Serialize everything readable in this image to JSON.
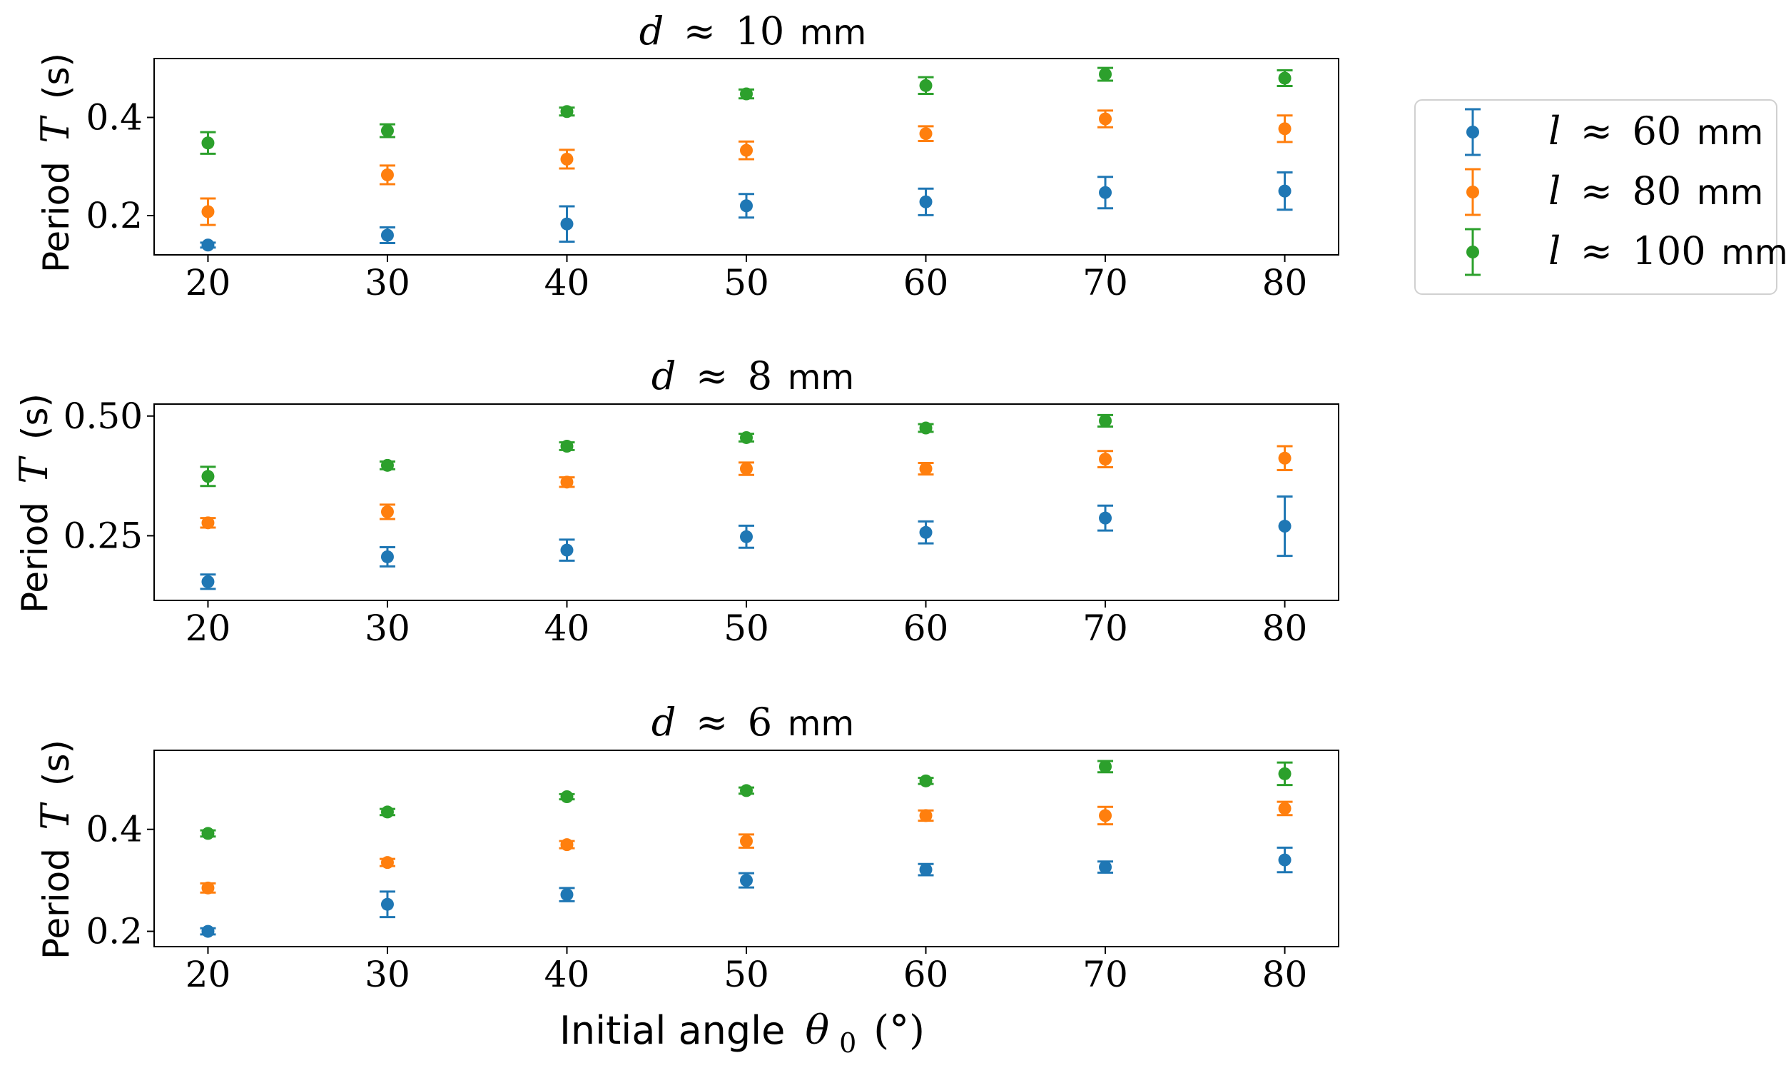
{
  "chart_data": [
    {
      "type": "scatter",
      "title": {
        "var": "d",
        "rel": "≈",
        "num": "10",
        "unit": "mm"
      },
      "ylabel": {
        "pre": "Period",
        "var": "T",
        "unit": "(s)"
      },
      "xlabel": "",
      "xlim": [
        17,
        83
      ],
      "ylim": [
        0.12,
        0.52
      ],
      "x_ticks": [
        20,
        30,
        40,
        50,
        60,
        70,
        80
      ],
      "y_ticks": [
        0.2,
        0.4
      ],
      "y_tick_labels": [
        "0.2",
        "0.4"
      ],
      "x": [
        20,
        30,
        40,
        50,
        60,
        70,
        80
      ],
      "series": [
        {
          "name": "l ≈ 60 mm",
          "color": "#1f77b4",
          "values": [
            0.14,
            0.16,
            0.183,
            0.22,
            0.228,
            0.247,
            0.25
          ],
          "errors": [
            0.005,
            0.016,
            0.036,
            0.024,
            0.027,
            0.032,
            0.038
          ]
        },
        {
          "name": "l ≈ 80 mm",
          "color": "#ff7f0e",
          "values": [
            0.208,
            0.283,
            0.315,
            0.333,
            0.367,
            0.397,
            0.377
          ],
          "errors": [
            0.027,
            0.019,
            0.019,
            0.018,
            0.015,
            0.017,
            0.027
          ]
        },
        {
          "name": "l ≈ 100 mm",
          "color": "#2ca02c",
          "values": [
            0.348,
            0.373,
            0.412,
            0.448,
            0.465,
            0.488,
            0.48
          ],
          "errors": [
            0.022,
            0.013,
            0.008,
            0.009,
            0.017,
            0.013,
            0.016
          ]
        }
      ]
    },
    {
      "type": "scatter",
      "title": {
        "var": "d",
        "rel": "≈",
        "num": "8",
        "unit": "mm"
      },
      "ylabel": {
        "pre": "Period",
        "var": "T",
        "unit": "(s)"
      },
      "xlabel": "",
      "xlim": [
        17,
        83
      ],
      "ylim": [
        0.115,
        0.525
      ],
      "x_ticks": [
        20,
        30,
        40,
        50,
        60,
        70,
        80
      ],
      "y_ticks": [
        0.25,
        0.5
      ],
      "y_tick_labels": [
        "0.25",
        "0.50"
      ],
      "x": [
        20,
        30,
        40,
        50,
        60,
        70,
        80
      ],
      "series": [
        {
          "name": "l ≈ 60 mm",
          "color": "#1f77b4",
          "values": [
            0.154,
            0.206,
            0.22,
            0.248,
            0.257,
            0.287,
            0.27
          ],
          "errors": [
            0.015,
            0.02,
            0.022,
            0.023,
            0.023,
            0.026,
            0.062
          ]
        },
        {
          "name": "l ≈ 80 mm",
          "color": "#ff7f0e",
          "values": [
            0.277,
            0.3,
            0.362,
            0.39,
            0.39,
            0.41,
            0.412
          ],
          "errors": [
            0.01,
            0.015,
            0.01,
            0.013,
            0.012,
            0.017,
            0.025
          ]
        },
        {
          "name": "l ≈ 100 mm",
          "color": "#2ca02c",
          "values": [
            0.374,
            0.397,
            0.437,
            0.455,
            0.475,
            0.49,
            null
          ],
          "errors": [
            0.02,
            0.008,
            0.008,
            0.008,
            0.008,
            0.012,
            null
          ]
        }
      ]
    },
    {
      "type": "scatter",
      "title": {
        "var": "d",
        "rel": "≈",
        "num": "6",
        "unit": "mm"
      },
      "ylabel": {
        "pre": "Period",
        "var": "T",
        "unit": "(s)"
      },
      "xlabel": {
        "pre": "Initial angle",
        "var": "θ",
        "sub": "0",
        "unit": "(°)"
      },
      "xlim": [
        17,
        83
      ],
      "ylim": [
        0.17,
        0.555
      ],
      "x_ticks": [
        20,
        30,
        40,
        50,
        60,
        70,
        80
      ],
      "y_ticks": [
        0.2,
        0.4
      ],
      "y_tick_labels": [
        "0.2",
        "0.4"
      ],
      "x": [
        20,
        30,
        40,
        50,
        60,
        70,
        80
      ],
      "series": [
        {
          "name": "l ≈ 60 mm",
          "color": "#1f77b4",
          "values": [
            0.2,
            0.253,
            0.272,
            0.3,
            0.321,
            0.326,
            0.34
          ],
          "errors": [
            0.006,
            0.025,
            0.013,
            0.014,
            0.011,
            0.011,
            0.024
          ]
        },
        {
          "name": "l ≈ 80 mm",
          "color": "#ff7f0e",
          "values": [
            0.285,
            0.335,
            0.37,
            0.377,
            0.427,
            0.427,
            0.441
          ],
          "errors": [
            0.009,
            0.007,
            0.007,
            0.013,
            0.01,
            0.017,
            0.013
          ]
        },
        {
          "name": "l ≈ 100 mm",
          "color": "#2ca02c",
          "values": [
            0.392,
            0.434,
            0.464,
            0.476,
            0.495,
            0.523,
            0.509
          ],
          "errors": [
            0.006,
            0.006,
            0.005,
            0.006,
            0.006,
            0.011,
            0.022
          ]
        }
      ]
    }
  ],
  "legend": {
    "placement": "right of top panel",
    "entries": [
      {
        "var": "l",
        "rel": "≈",
        "num": "60",
        "unit": "mm",
        "color": "#1f77b4"
      },
      {
        "var": "l",
        "rel": "≈",
        "num": "80",
        "unit": "mm",
        "color": "#ff7f0e"
      },
      {
        "var": "l",
        "rel": "≈",
        "num": "100",
        "unit": "mm",
        "color": "#2ca02c"
      }
    ]
  }
}
